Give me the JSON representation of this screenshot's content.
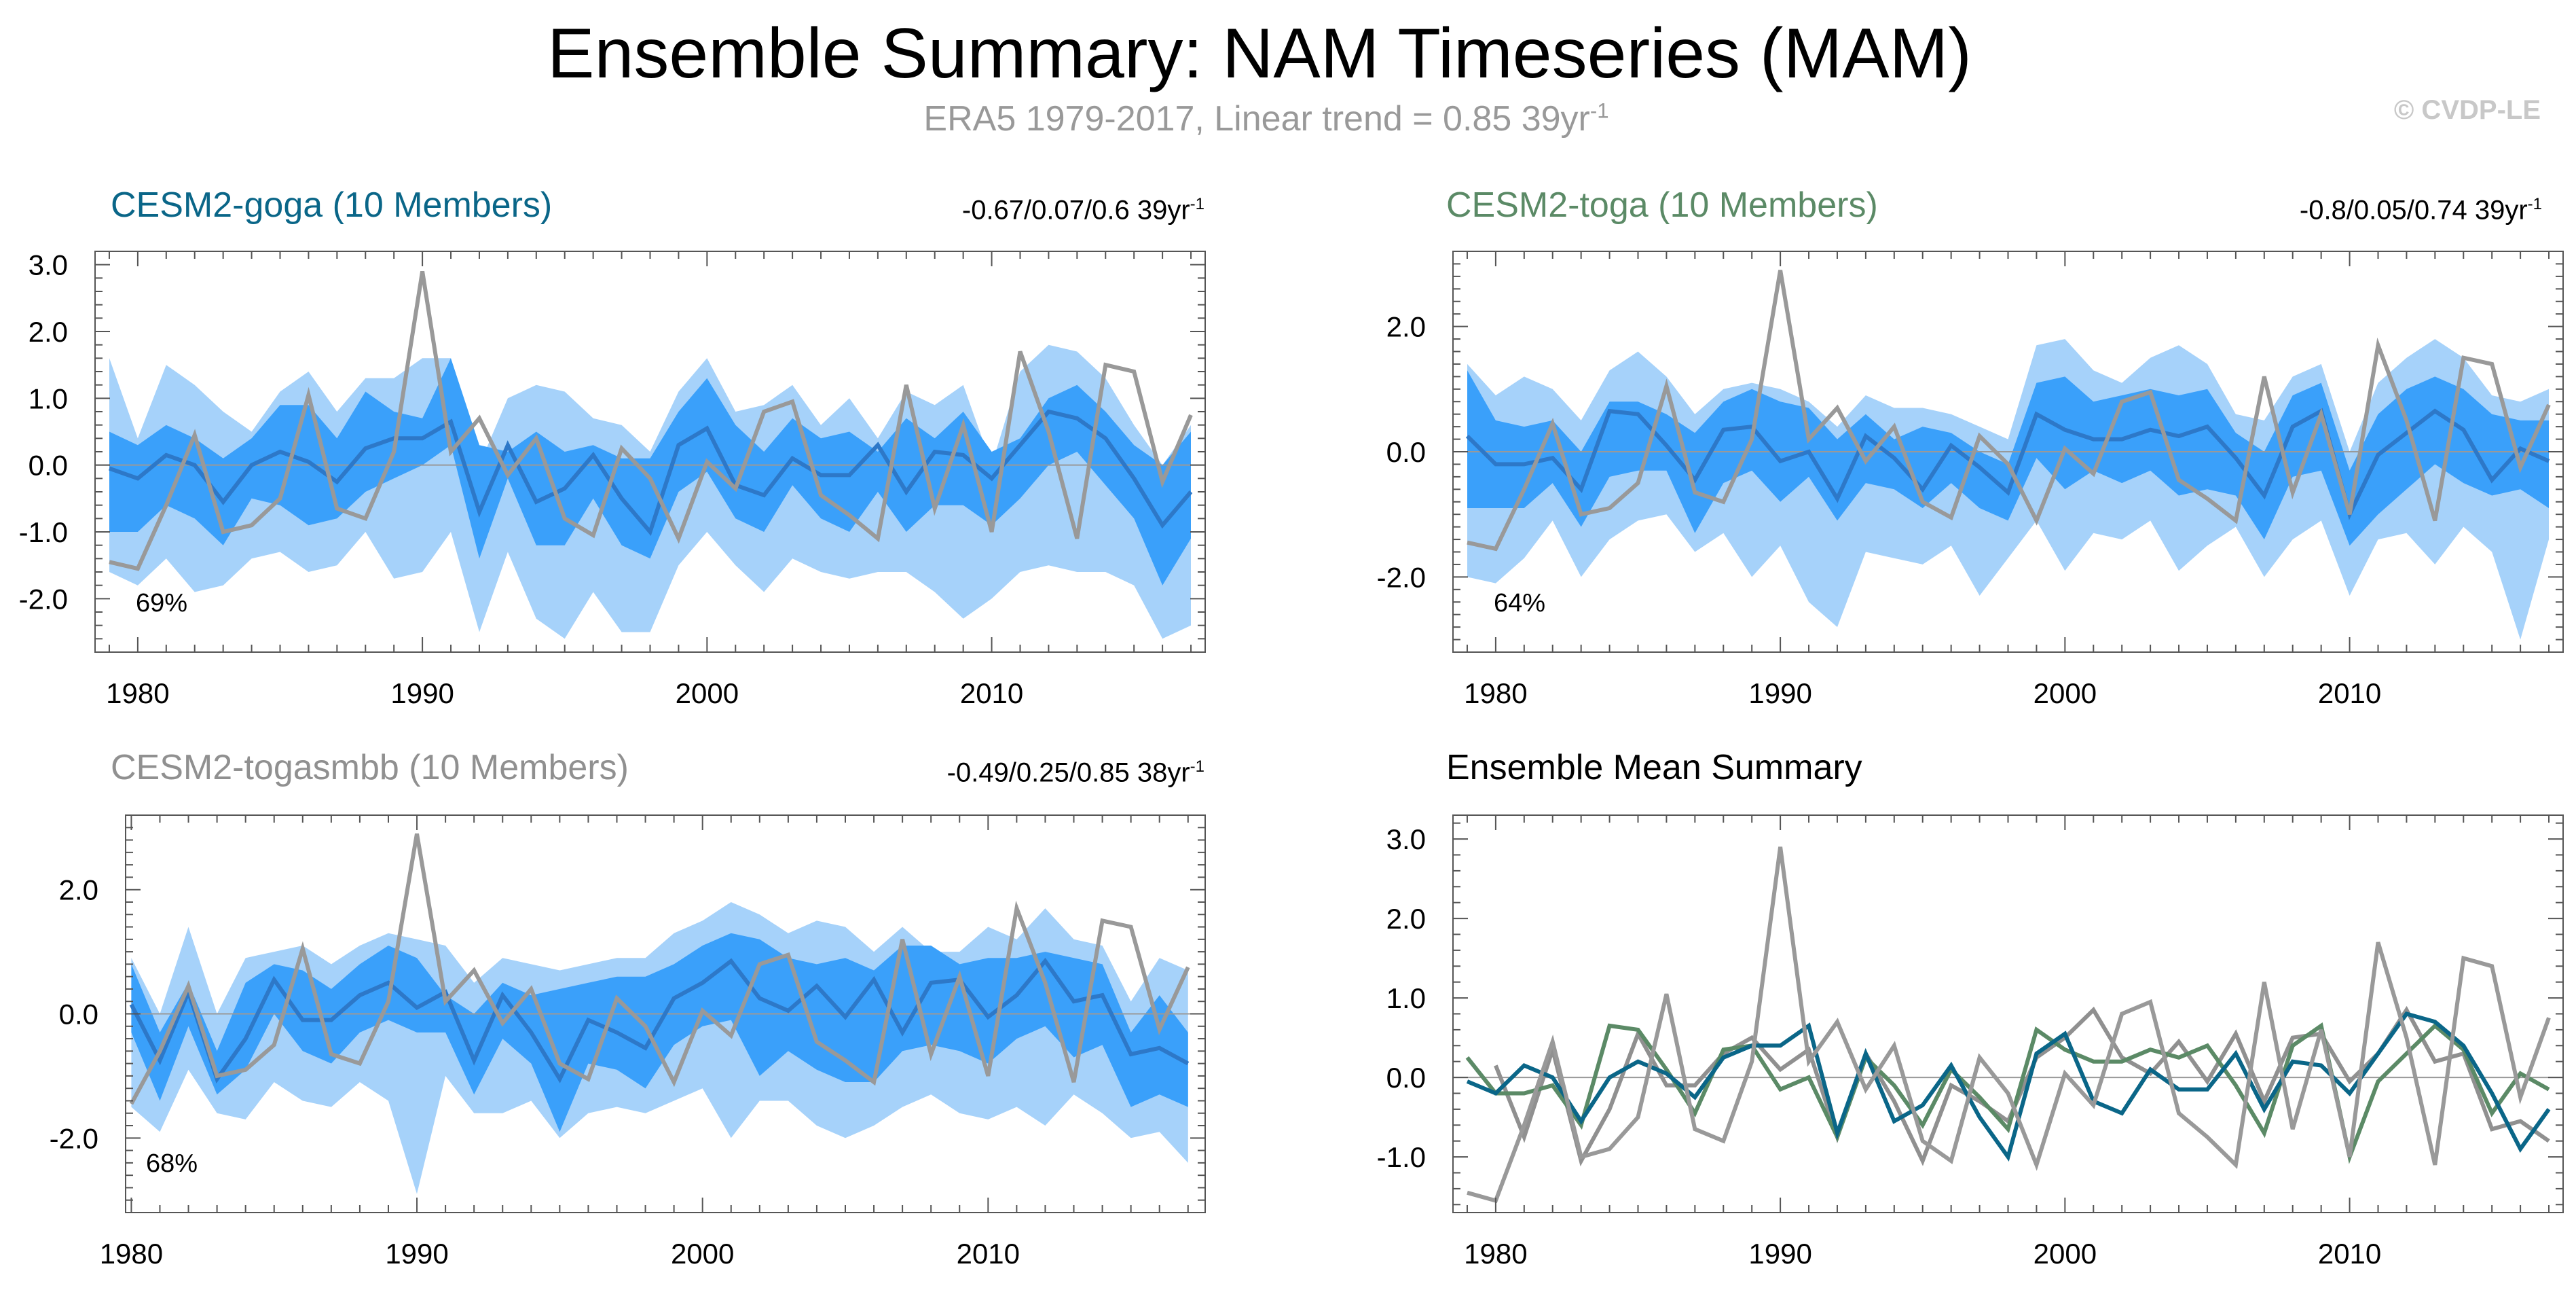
{
  "title": "Ensemble Summary: NAM Timeseries (MAM)",
  "subtitle": {
    "text": "ERA5 1979-2017, Linear trend = 0.85 39yr",
    "sup": "-1"
  },
  "credit": "© CVDP-LE",
  "colors": {
    "band_outer": "#a6d2fa",
    "band_inner": "#3aa0fa",
    "ensemble_mean": "#2d78c8",
    "observed": "#999999",
    "goga": "#0a6688",
    "toga": "#5b8a66",
    "togasmbb": "#909090"
  },
  "chart_data": [
    {
      "type": "area",
      "id": "goga",
      "title": "CESM2-goga (10 Members)",
      "stat": "-0.67/0.07/0.6 39yr",
      "stat_sup": "-1",
      "percent": "69%",
      "x": [
        1979,
        1980,
        1981,
        1982,
        1983,
        1984,
        1985,
        1986,
        1987,
        1988,
        1989,
        1990,
        1991,
        1992,
        1993,
        1994,
        1995,
        1996,
        1997,
        1998,
        1999,
        2000,
        2001,
        2002,
        2003,
        2004,
        2005,
        2006,
        2007,
        2008,
        2009,
        2010,
        2011,
        2012,
        2013,
        2014,
        2015,
        2016,
        2017
      ],
      "xlim": [
        1978.5,
        2017.5
      ],
      "xticks": [
        1980,
        1990,
        2000,
        2010
      ],
      "ylim": [
        -2.8,
        3.2
      ],
      "yticks": [
        3.0,
        2.0,
        1.0,
        0.0,
        -1.0,
        -2.0
      ],
      "ytick_labels": [
        "3.0",
        "2.0",
        "1.0",
        "0.0",
        "-1.0",
        "-2.0"
      ],
      "band_outer_upper": [
        1.6,
        0.4,
        1.5,
        1.2,
        0.8,
        0.5,
        1.1,
        1.4,
        0.8,
        1.3,
        1.3,
        1.6,
        1.6,
        0.0,
        1.0,
        1.2,
        1.1,
        0.7,
        0.6,
        0.2,
        1.1,
        1.6,
        0.8,
        0.9,
        1.2,
        0.6,
        1.0,
        0.4,
        1.1,
        0.9,
        1.2,
        0.0,
        1.4,
        1.8,
        1.7,
        1.3,
        0.6,
        0.0,
        0.6
      ],
      "band_inner_upper": [
        0.5,
        0.3,
        0.6,
        0.4,
        0.1,
        0.4,
        0.9,
        0.9,
        0.4,
        1.1,
        0.8,
        0.7,
        1.6,
        0.3,
        0.2,
        0.5,
        0.2,
        0.3,
        0.1,
        0.1,
        0.8,
        1.3,
        0.6,
        0.2,
        0.7,
        0.4,
        0.5,
        0.2,
        0.7,
        0.4,
        0.8,
        0.2,
        0.4,
        1.0,
        1.2,
        0.8,
        0.3,
        0.0,
        0.5
      ],
      "mean": [
        -0.05,
        -0.2,
        0.15,
        0.0,
        -0.55,
        0.0,
        0.2,
        0.05,
        -0.25,
        0.25,
        0.4,
        0.4,
        0.65,
        -0.7,
        0.3,
        -0.55,
        -0.35,
        0.15,
        -0.5,
        -1.0,
        0.3,
        0.55,
        -0.3,
        -0.45,
        0.1,
        -0.15,
        -0.15,
        0.3,
        -0.4,
        0.2,
        0.15,
        -0.2,
        0.3,
        0.8,
        0.7,
        0.4,
        -0.2,
        -0.9,
        -0.4
      ],
      "band_inner_lower": [
        -1.0,
        -1.0,
        -0.6,
        -0.8,
        -1.2,
        -0.5,
        -0.6,
        -0.9,
        -0.8,
        -0.4,
        -0.2,
        0.0,
        0.3,
        -1.4,
        -0.2,
        -1.2,
        -1.2,
        -0.5,
        -1.2,
        -1.4,
        -0.4,
        -0.1,
        -0.8,
        -1.0,
        -0.3,
        -0.8,
        -1.0,
        -0.4,
        -1.0,
        -0.6,
        -0.6,
        -0.9,
        -0.5,
        0.0,
        0.2,
        -0.3,
        -0.8,
        -1.8,
        -1.1
      ],
      "band_outer_lower": [
        -1.6,
        -1.8,
        -1.4,
        -1.9,
        -1.8,
        -1.4,
        -1.3,
        -1.6,
        -1.5,
        -1.0,
        -1.7,
        -1.6,
        -1.0,
        -2.5,
        -1.3,
        -2.3,
        -2.6,
        -1.9,
        -2.5,
        -2.5,
        -1.5,
        -1.0,
        -1.5,
        -1.9,
        -1.4,
        -1.6,
        -1.7,
        -1.6,
        -1.6,
        -1.9,
        -2.3,
        -2.0,
        -1.6,
        -1.5,
        -1.6,
        -1.6,
        -1.8,
        -2.6,
        -2.4
      ],
      "observed": [
        -1.45,
        -1.55,
        -0.6,
        0.45,
        -1.0,
        -0.9,
        -0.5,
        1.05,
        -0.65,
        -0.8,
        0.2,
        2.9,
        0.2,
        0.7,
        -0.15,
        0.4,
        -0.8,
        -1.05,
        0.25,
        -0.2,
        -1.1,
        0.05,
        -0.35,
        0.8,
        0.95,
        -0.45,
        -0.75,
        -1.1,
        1.2,
        -0.65,
        0.6,
        -1.0,
        1.7,
        0.5,
        -1.1,
        1.5,
        1.4,
        -0.25,
        0.75
      ]
    },
    {
      "type": "area",
      "id": "toga",
      "title": "CESM2-toga (10 Members)",
      "stat": "-0.8/0.05/0.74 39yr",
      "stat_sup": "-1",
      "percent": "64%",
      "x": [
        1979,
        1980,
        1981,
        1982,
        1983,
        1984,
        1985,
        1986,
        1987,
        1988,
        1989,
        1990,
        1991,
        1992,
        1993,
        1994,
        1995,
        1996,
        1997,
        1998,
        1999,
        2000,
        2001,
        2002,
        2003,
        2004,
        2005,
        2006,
        2007,
        2008,
        2009,
        2010,
        2011,
        2012,
        2013,
        2014,
        2015,
        2016,
        2017
      ],
      "xlim": [
        1978.5,
        2017.5
      ],
      "xticks": [
        1980,
        1990,
        2000,
        2010
      ],
      "ylim": [
        -3.2,
        3.2
      ],
      "yticks": [
        2.0,
        0.0,
        -2.0
      ],
      "ytick_labels": [
        "2.0",
        "0.0",
        "-2.0"
      ],
      "band_outer_upper": [
        1.4,
        0.9,
        1.2,
        1.0,
        0.5,
        1.3,
        1.6,
        1.2,
        0.6,
        1.0,
        1.1,
        1.0,
        0.8,
        0.4,
        0.9,
        0.7,
        0.7,
        0.6,
        0.4,
        0.2,
        1.7,
        1.8,
        1.3,
        1.1,
        1.5,
        1.7,
        1.4,
        0.6,
        0.5,
        1.2,
        1.4,
        0.0,
        1.1,
        1.5,
        1.8,
        1.5,
        0.9,
        0.8,
        1.0
      ],
      "band_inner_upper": [
        1.3,
        0.5,
        0.4,
        0.5,
        0.0,
        0.8,
        0.8,
        0.6,
        0.3,
        0.8,
        1.0,
        0.8,
        0.7,
        0.2,
        0.6,
        0.2,
        0.4,
        0.3,
        0.0,
        -0.2,
        1.1,
        1.2,
        0.8,
        0.9,
        1.0,
        0.9,
        1.0,
        0.3,
        0.0,
        0.9,
        1.1,
        -0.3,
        0.6,
        1.0,
        1.2,
        1.0,
        0.6,
        0.5,
        0.5
      ],
      "mean": [
        0.25,
        -0.2,
        -0.2,
        -0.1,
        -0.6,
        0.65,
        0.6,
        0.1,
        -0.45,
        0.35,
        0.4,
        -0.15,
        0.0,
        -0.75,
        0.25,
        -0.1,
        -0.6,
        0.1,
        -0.25,
        -0.65,
        0.6,
        0.35,
        0.2,
        0.2,
        0.35,
        0.25,
        0.4,
        -0.1,
        -0.7,
        0.4,
        0.65,
        -1.0,
        -0.05,
        0.3,
        0.65,
        0.35,
        -0.45,
        0.05,
        -0.15
      ],
      "band_inner_lower": [
        -0.9,
        -0.9,
        -0.9,
        -0.5,
        -1.2,
        -0.4,
        -0.3,
        -0.3,
        -1.3,
        -0.5,
        -0.3,
        -0.8,
        -0.4,
        -1.1,
        -0.5,
        -0.6,
        -0.9,
        -0.5,
        -0.9,
        -1.1,
        -0.1,
        -0.6,
        -0.3,
        -0.5,
        -0.3,
        -0.7,
        -0.6,
        -0.7,
        -1.4,
        -0.4,
        -0.3,
        -1.5,
        -1.0,
        -0.6,
        -0.2,
        -0.5,
        -0.7,
        -0.6,
        -0.9
      ],
      "band_outer_lower": [
        -2.0,
        -2.1,
        -1.7,
        -1.1,
        -2.0,
        -1.4,
        -1.1,
        -1.0,
        -1.6,
        -1.3,
        -2.0,
        -1.5,
        -2.4,
        -2.8,
        -1.6,
        -1.7,
        -1.8,
        -1.5,
        -2.3,
        -1.7,
        -1.1,
        -1.9,
        -1.3,
        -1.4,
        -1.1,
        -1.9,
        -1.5,
        -1.2,
        -2.0,
        -1.4,
        -1.1,
        -2.3,
        -1.4,
        -1.3,
        -1.8,
        -1.2,
        -1.6,
        -3.0,
        -1.4
      ],
      "observed": [
        -1.45,
        -1.55,
        -0.6,
        0.45,
        -1.0,
        -0.9,
        -0.5,
        1.05,
        -0.65,
        -0.8,
        0.2,
        2.9,
        0.2,
        0.7,
        -0.15,
        0.4,
        -0.8,
        -1.05,
        0.25,
        -0.2,
        -1.1,
        0.05,
        -0.35,
        0.8,
        0.95,
        -0.45,
        -0.75,
        -1.1,
        1.2,
        -0.65,
        0.6,
        -1.0,
        1.7,
        0.5,
        -1.1,
        1.5,
        1.4,
        -0.25,
        0.75
      ]
    },
    {
      "type": "area",
      "id": "togasmbb",
      "title": "CESM2-togasmbb (10 Members)",
      "stat": "-0.49/0.25/0.85 38yr",
      "stat_sup": "-1",
      "percent": "68%",
      "x": [
        1980,
        1981,
        1982,
        1983,
        1984,
        1985,
        1986,
        1987,
        1988,
        1989,
        1990,
        1991,
        1992,
        1993,
        1994,
        1995,
        1996,
        1997,
        1998,
        1999,
        2000,
        2001,
        2002,
        2003,
        2004,
        2005,
        2006,
        2007,
        2008,
        2009,
        2010,
        2011,
        2012,
        2013,
        2014,
        2015,
        2016,
        2017
      ],
      "xlim": [
        1979.8,
        2017.6
      ],
      "xticks": [
        1980,
        1990,
        2000,
        2010
      ],
      "ylim": [
        -3.2,
        3.2
      ],
      "yticks": [
        2.0,
        0.0,
        -2.0
      ],
      "ytick_labels": [
        "2.0",
        "0.0",
        "-2.0"
      ],
      "band_outer_upper": [
        0.9,
        0.0,
        1.4,
        0.0,
        0.9,
        1.0,
        1.1,
        0.8,
        1.1,
        1.3,
        1.2,
        1.1,
        0.5,
        0.9,
        0.8,
        0.7,
        0.8,
        0.9,
        0.9,
        1.3,
        1.5,
        1.8,
        1.6,
        1.3,
        1.5,
        1.4,
        1.0,
        1.4,
        1.0,
        1.0,
        1.4,
        1.2,
        1.7,
        1.2,
        1.1,
        0.2,
        0.9,
        0.7
      ],
      "band_inner_upper": [
        0.8,
        -0.3,
        0.5,
        -0.6,
        0.5,
        0.8,
        0.7,
        0.4,
        0.8,
        1.1,
        0.9,
        0.3,
        0.0,
        0.5,
        0.3,
        0.4,
        0.5,
        0.6,
        0.6,
        0.8,
        1.1,
        1.3,
        1.2,
        0.9,
        0.8,
        0.9,
        0.7,
        1.1,
        1.1,
        0.8,
        0.9,
        0.9,
        1.0,
        0.9,
        0.8,
        -0.3,
        0.3,
        -0.3
      ],
      "mean": [
        0.15,
        -0.75,
        0.35,
        -1.05,
        -0.4,
        0.55,
        -0.1,
        -0.1,
        0.3,
        0.5,
        0.1,
        0.35,
        -0.75,
        0.3,
        -0.3,
        -1.05,
        -0.1,
        -0.3,
        -0.55,
        0.25,
        0.5,
        0.85,
        0.25,
        0.05,
        0.45,
        -0.05,
        0.55,
        -0.3,
        0.5,
        0.55,
        -0.05,
        0.3,
        0.85,
        0.2,
        0.3,
        -0.65,
        -0.55,
        -0.8
      ],
      "band_inner_lower": [
        -0.3,
        -1.4,
        -0.2,
        -1.3,
        -0.9,
        0.0,
        -0.6,
        -0.8,
        -0.3,
        -0.1,
        -0.3,
        -0.3,
        -1.3,
        -0.4,
        -0.8,
        -1.9,
        -0.8,
        -0.9,
        -1.2,
        -0.5,
        -0.2,
        -0.1,
        -1.0,
        -0.6,
        -0.9,
        -1.1,
        -1.1,
        -0.6,
        -0.5,
        -0.6,
        -0.8,
        -0.4,
        -0.2,
        -0.7,
        -0.5,
        -1.5,
        -1.3,
        -1.5
      ],
      "band_outer_lower": [
        -1.5,
        -1.9,
        -0.9,
        -1.6,
        -1.7,
        -1.1,
        -1.4,
        -1.5,
        -1.1,
        -1.4,
        -2.9,
        -1.0,
        -1.6,
        -1.6,
        -1.4,
        -2.0,
        -1.6,
        -1.5,
        -1.6,
        -1.4,
        -1.2,
        -2.0,
        -1.4,
        -1.4,
        -1.8,
        -2.0,
        -1.8,
        -1.5,
        -1.3,
        -1.6,
        -1.7,
        -1.5,
        -1.8,
        -1.3,
        -1.6,
        -2.0,
        -1.9,
        -2.4
      ],
      "observed": [
        -1.45,
        -0.6,
        0.45,
        -1.0,
        -0.9,
        -0.5,
        1.05,
        -0.65,
        -0.8,
        0.2,
        2.9,
        0.2,
        0.7,
        -0.15,
        0.4,
        -0.8,
        -1.05,
        0.25,
        -0.2,
        -1.1,
        0.05,
        -0.35,
        0.8,
        0.95,
        -0.45,
        -0.75,
        -1.1,
        1.2,
        -0.65,
        0.6,
        -1.0,
        1.7,
        0.5,
        -1.1,
        1.5,
        1.4,
        -0.25,
        0.75
      ]
    },
    {
      "type": "line",
      "id": "mean",
      "title": "Ensemble Mean Summary",
      "x": [
        1979,
        1980,
        1981,
        1982,
        1983,
        1984,
        1985,
        1986,
        1987,
        1988,
        1989,
        1990,
        1991,
        1992,
        1993,
        1994,
        1995,
        1996,
        1997,
        1998,
        1999,
        2000,
        2001,
        2002,
        2003,
        2004,
        2005,
        2006,
        2007,
        2008,
        2009,
        2010,
        2011,
        2012,
        2013,
        2014,
        2015,
        2016,
        2017
      ],
      "xlim": [
        1978.5,
        2017.5
      ],
      "xticks": [
        1980,
        1990,
        2000,
        2010
      ],
      "ylim": [
        -1.7,
        3.3
      ],
      "yticks": [
        3.0,
        2.0,
        1.0,
        0.0,
        -1.0
      ],
      "ytick_labels": [
        "3.0",
        "2.0",
        "1.0",
        "0.0",
        "-1.0"
      ],
      "series": [
        {
          "name": "CESM2-togasmbb",
          "color_key": "togasmbb",
          "values": [
            null,
            0.15,
            -0.75,
            0.35,
            -1.05,
            -0.4,
            0.55,
            -0.1,
            -0.1,
            0.3,
            0.5,
            0.1,
            0.35,
            -0.75,
            0.3,
            -0.3,
            -1.05,
            -0.1,
            -0.3,
            -0.55,
            0.25,
            0.5,
            0.85,
            0.25,
            0.05,
            0.45,
            -0.05,
            0.55,
            -0.3,
            0.5,
            0.55,
            -0.05,
            0.3,
            0.85,
            0.2,
            0.3,
            -0.65,
            -0.55,
            -0.8
          ]
        },
        {
          "name": "CESM2-toga",
          "color_key": "toga",
          "values": [
            0.25,
            -0.2,
            -0.2,
            -0.1,
            -0.6,
            0.65,
            0.6,
            0.1,
            -0.45,
            0.35,
            0.4,
            -0.15,
            0.0,
            -0.75,
            0.25,
            -0.1,
            -0.6,
            0.1,
            -0.25,
            -0.65,
            0.6,
            0.35,
            0.2,
            0.2,
            0.35,
            0.25,
            0.4,
            -0.1,
            -0.7,
            0.4,
            0.65,
            -1.0,
            -0.05,
            0.3,
            0.65,
            0.35,
            -0.45,
            0.05,
            -0.15
          ]
        },
        {
          "name": "CESM2-goga",
          "color_key": "goga",
          "values": [
            -0.05,
            -0.2,
            0.15,
            0.0,
            -0.55,
            0.0,
            0.2,
            0.05,
            -0.25,
            0.25,
            0.4,
            0.4,
            0.65,
            -0.7,
            0.3,
            -0.55,
            -0.35,
            0.15,
            -0.5,
            -1.0,
            0.3,
            0.55,
            -0.3,
            -0.45,
            0.1,
            -0.15,
            -0.15,
            0.3,
            -0.4,
            0.2,
            0.15,
            -0.2,
            0.3,
            0.8,
            0.7,
            0.4,
            -0.2,
            -0.9,
            -0.4
          ]
        },
        {
          "name": "ERA5",
          "color_key": "observed",
          "values": [
            -1.45,
            -1.55,
            -0.6,
            0.45,
            -1.0,
            -0.9,
            -0.5,
            1.05,
            -0.65,
            -0.8,
            0.2,
            2.9,
            0.2,
            0.7,
            -0.15,
            0.4,
            -0.8,
            -1.05,
            0.25,
            -0.2,
            -1.1,
            0.05,
            -0.35,
            0.8,
            0.95,
            -0.45,
            -0.75,
            -1.1,
            1.2,
            -0.65,
            0.6,
            -1.0,
            1.7,
            0.5,
            -1.1,
            1.5,
            1.4,
            -0.25,
            0.75
          ]
        }
      ]
    }
  ]
}
